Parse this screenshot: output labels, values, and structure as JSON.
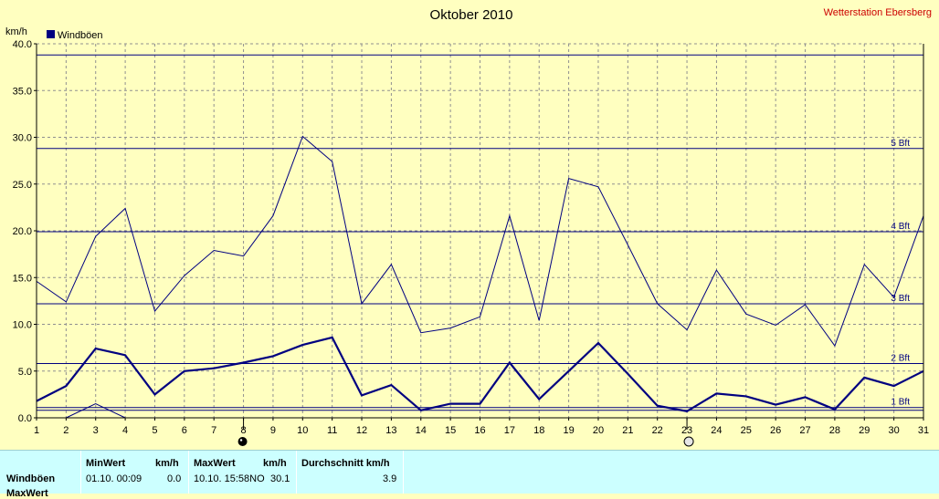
{
  "chart_data": {
    "type": "line",
    "title": "Oktober 2010",
    "station": "Wetterstation Ebersberg",
    "yunit": "km/h",
    "ylim": [
      0,
      40
    ],
    "yticks": [
      "0.0",
      "5.0",
      "10.0",
      "15.0",
      "20.0",
      "25.0",
      "30.0",
      "35.0",
      "40.0"
    ],
    "ytick_values": [
      0,
      5,
      10,
      15,
      20,
      25,
      30,
      35,
      40
    ],
    "x": [
      1,
      2,
      3,
      4,
      5,
      6,
      7,
      8,
      9,
      10,
      11,
      12,
      13,
      14,
      15,
      16,
      17,
      18,
      19,
      20,
      21,
      22,
      23,
      24,
      25,
      26,
      27,
      28,
      29,
      30,
      31
    ],
    "grid": true,
    "legend": {
      "label": "Windböen",
      "position": "top-left",
      "color": "#000080"
    },
    "series": [
      {
        "name": "Windböen",
        "style": "bold",
        "values": [
          1.8,
          3.4,
          7.4,
          6.7,
          2.5,
          5.0,
          5.3,
          5.9,
          6.6,
          7.8,
          8.6,
          2.4,
          3.5,
          0.8,
          1.5,
          1.5,
          5.9,
          2.0,
          5.0,
          8.0,
          4.7,
          1.3,
          0.7,
          2.6,
          2.3,
          1.4,
          2.2,
          0.9,
          4.3,
          3.4,
          5.0
        ]
      },
      {
        "style": "thin",
        "values": [
          14.6,
          12.4,
          19.4,
          22.4,
          11.4,
          15.2,
          17.9,
          17.3,
          21.6,
          30.1,
          27.4,
          12.2,
          16.4,
          9.1,
          9.6,
          10.8,
          21.6,
          10.4,
          25.6,
          24.7,
          18.5,
          12.2,
          9.4,
          15.8,
          11.1,
          9.9,
          12.1,
          7.7,
          16.4,
          12.9,
          21.6
        ]
      },
      {
        "style": "thin-partial",
        "x": [
          2,
          3,
          4
        ],
        "values": [
          0,
          1.5,
          0
        ]
      }
    ],
    "reference_lines": [
      {
        "value": 0.8,
        "label": ""
      },
      {
        "value": 1.1,
        "label": "1 Bft"
      },
      {
        "value": 5.8,
        "label": "2 Bft"
      },
      {
        "value": 12.2,
        "label": "3 Bft"
      },
      {
        "value": 19.9,
        "label": "4 Bft"
      },
      {
        "value": 28.8,
        "label": "5 Bft"
      },
      {
        "value": 38.8,
        "label": ""
      }
    ],
    "markers": [
      {
        "x": 8,
        "type": "full-moon-dark"
      },
      {
        "x": 23,
        "type": "new-moon-light"
      }
    ]
  },
  "stats": {
    "headers": {
      "min": "MinWert",
      "min_unit": "km/h",
      "max": "MaxWert",
      "max_unit": "km/h",
      "avg": "Durchschnitt km/h"
    },
    "rows": [
      {
        "label": "Windböen",
        "min_time": "01.10.  00:09",
        "min_val": "0.0",
        "max_time": "10.10.  15:58NO",
        "max_val": "30.1",
        "avg": "3.9"
      }
    ],
    "cut_label": "MaxWert"
  },
  "colors": {
    "background": "#ffffc0",
    "series": "#000080",
    "grid": "#909090",
    "station": "#cc0000",
    "stats_bg": "#ccffff"
  }
}
